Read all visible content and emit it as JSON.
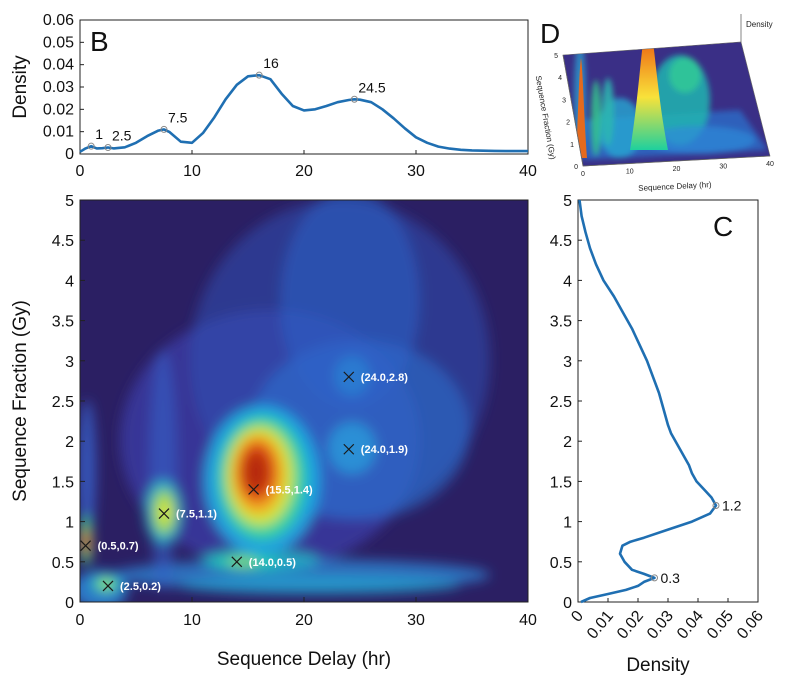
{
  "chart_data": [
    {
      "panel": "B",
      "type": "line",
      "panel_label": "B",
      "xlabel": "",
      "ylabel": "Density",
      "xlim": [
        0,
        40
      ],
      "ylim": [
        0,
        0.06
      ],
      "xticks": [
        "0",
        "10",
        "20",
        "30",
        "40"
      ],
      "yticks": [
        "0",
        "0.01",
        "0.02",
        "0.03",
        "0.04",
        "0.05",
        "0.06"
      ],
      "x": [
        0,
        0.5,
        1,
        1.5,
        2,
        2.5,
        3,
        4,
        5,
        6,
        7,
        7.5,
        8,
        9,
        10,
        11,
        12,
        13,
        14,
        15,
        16,
        17,
        18,
        19,
        20,
        21,
        22,
        23,
        24,
        24.5,
        25,
        26,
        27,
        28,
        29,
        30,
        31,
        32,
        33,
        34,
        35,
        36,
        37,
        38,
        40
      ],
      "y": [
        0.001,
        0.0025,
        0.0035,
        0.0025,
        0.0026,
        0.0029,
        0.0025,
        0.003,
        0.005,
        0.008,
        0.0105,
        0.011,
        0.0098,
        0.0055,
        0.005,
        0.0095,
        0.0165,
        0.0245,
        0.031,
        0.0348,
        0.0353,
        0.0335,
        0.027,
        0.0215,
        0.0195,
        0.02,
        0.0215,
        0.0232,
        0.0242,
        0.0245,
        0.0243,
        0.0232,
        0.02,
        0.016,
        0.0115,
        0.0075,
        0.005,
        0.0033,
        0.0024,
        0.0019,
        0.0016,
        0.0015,
        0.0014,
        0.0013,
        0.0013
      ],
      "peaks": [
        {
          "x": 1,
          "y": 0.0035,
          "label": "1"
        },
        {
          "x": 2.5,
          "y": 0.0029,
          "label": "2.5"
        },
        {
          "x": 7.5,
          "y": 0.011,
          "label": "7.5"
        },
        {
          "x": 16,
          "y": 0.0353,
          "label": "16"
        },
        {
          "x": 24.5,
          "y": 0.0245,
          "label": "24.5"
        }
      ]
    },
    {
      "panel": "main",
      "type": "heatmap",
      "xlabel": "Sequence Delay (hr)",
      "ylabel": "Sequence Fraction (Gy)",
      "xlim": [
        0,
        40
      ],
      "ylim": [
        0,
        5
      ],
      "xticks": [
        "0",
        "10",
        "20",
        "30",
        "40"
      ],
      "yticks": [
        "0",
        "0.5",
        "1",
        "1.5",
        "2",
        "2.5",
        "3",
        "3.5",
        "4",
        "4.5",
        "5"
      ],
      "colormap": "parula/jet-like",
      "peaks": [
        {
          "x": 0.5,
          "y": 0.7,
          "label": "(0.5,0.7)"
        },
        {
          "x": 2.5,
          "y": 0.2,
          "label": "(2.5,0.2)"
        },
        {
          "x": 7.5,
          "y": 1.1,
          "label": "(7.5,1.1)"
        },
        {
          "x": 14.0,
          "y": 0.5,
          "label": "(14.0,0.5)"
        },
        {
          "x": 15.5,
          "y": 1.4,
          "label": "(15.5,1.4)"
        },
        {
          "x": 24.0,
          "y": 1.9,
          "label": "(24.0,1.9)"
        },
        {
          "x": 24.0,
          "y": 2.8,
          "label": "(24.0,2.8)"
        }
      ]
    },
    {
      "panel": "C",
      "type": "line",
      "panel_label": "C",
      "xlabel": "Density",
      "ylabel": "",
      "xlim": [
        0,
        0.06
      ],
      "ylim": [
        0,
        5
      ],
      "xticks": [
        "0",
        "0.01",
        "0.02",
        "0.03",
        "0.04",
        "0.05",
        "0.06"
      ],
      "yticks": [
        "0",
        "0.5",
        "1",
        "1.5",
        "2",
        "2.5",
        "3",
        "3.5",
        "4",
        "4.5",
        "5"
      ],
      "y": [
        0,
        0.05,
        0.1,
        0.15,
        0.2,
        0.25,
        0.3,
        0.35,
        0.4,
        0.5,
        0.6,
        0.7,
        0.75,
        0.8,
        0.9,
        1.0,
        1.1,
        1.2,
        1.3,
        1.4,
        1.5,
        1.6,
        1.7,
        1.8,
        1.9,
        2.0,
        2.1,
        2.2,
        2.4,
        2.6,
        2.8,
        3.0,
        3.2,
        3.4,
        3.6,
        3.8,
        4.0,
        4.2,
        4.4,
        4.6,
        4.8,
        5.0
      ],
      "density": [
        0.001,
        0.004,
        0.01,
        0.016,
        0.02,
        0.022,
        0.0255,
        0.022,
        0.018,
        0.0155,
        0.014,
        0.0148,
        0.0175,
        0.022,
        0.03,
        0.038,
        0.044,
        0.046,
        0.0445,
        0.042,
        0.0395,
        0.038,
        0.037,
        0.0355,
        0.034,
        0.0325,
        0.031,
        0.03,
        0.0285,
        0.027,
        0.025,
        0.023,
        0.0205,
        0.018,
        0.015,
        0.012,
        0.0085,
        0.006,
        0.004,
        0.0025,
        0.0012,
        0.0005
      ],
      "peaks": [
        {
          "x": 0.0255,
          "y": 0.3,
          "label": "0.3"
        },
        {
          "x": 0.046,
          "y": 1.2,
          "label": "1.2"
        }
      ]
    },
    {
      "panel": "D",
      "type": "surface",
      "panel_label": "D",
      "xlabel": "Sequence Delay (hr)",
      "ylabel": "Sequence Fraction (Gy)",
      "zlabel": "Density",
      "xticks": [
        "0",
        "10",
        "20",
        "30",
        "40"
      ],
      "yticks": [
        "0",
        "1",
        "2",
        "3",
        "4",
        "5"
      ]
    }
  ]
}
